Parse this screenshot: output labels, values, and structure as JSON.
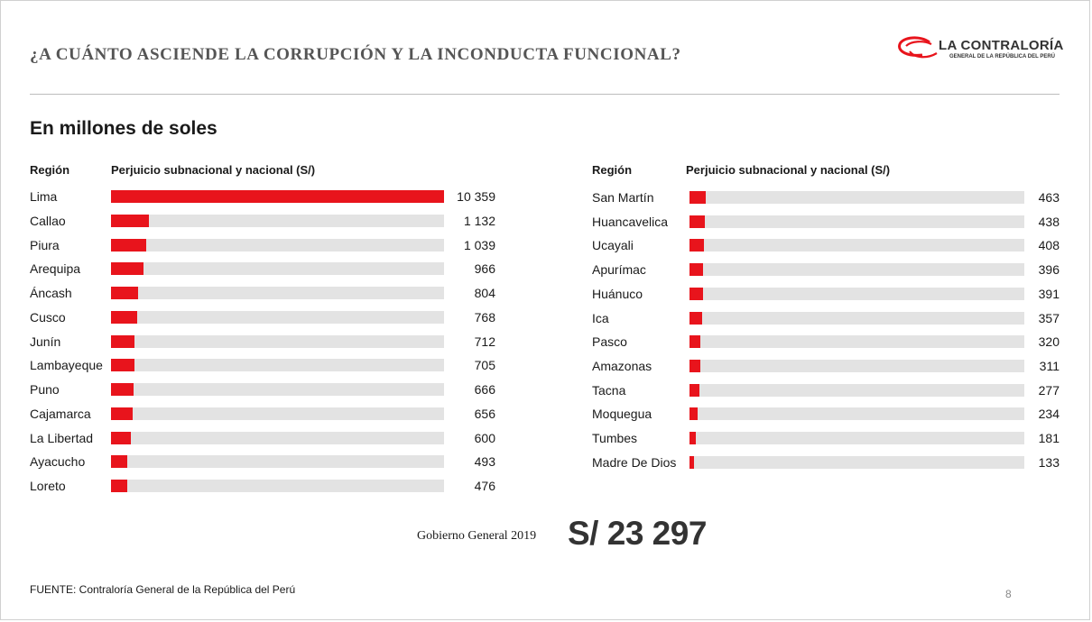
{
  "title": "¿A CUÁNTO ASCIENDE LA CORRUPCIÓN Y LA INCONDUCTA FUNCIONAL?",
  "logo": {
    "name": "LA CONTRALORÍA",
    "subtitle": "GENERAL DE LA REPÚBLICA DEL PERÚ",
    "color": "#e8141c"
  },
  "subtitle": "En millones de soles",
  "colors": {
    "bar": "#e8141c",
    "track": "#e3e3e3"
  },
  "chart_data": {
    "type": "bar",
    "orientation": "horizontal",
    "max_value": 10359,
    "panels": [
      {
        "header_region": "Región",
        "header_value": "Perjuicio subnacional y nacional (S/)",
        "categories": [
          "Lima",
          "Callao",
          "Piura",
          "Arequipa",
          "Áncash",
          "Cusco",
          "Junín",
          "Lambayeque",
          "Puno",
          "Cajamarca",
          "La Libertad",
          "Ayacucho",
          "Loreto"
        ],
        "values": [
          10359,
          1132,
          1039,
          966,
          804,
          768,
          712,
          705,
          666,
          656,
          600,
          493,
          476
        ],
        "value_labels": [
          "10 359",
          "1 132",
          "1 039",
          "966",
          "804",
          "768",
          "712",
          "705",
          "666",
          "656",
          "600",
          "493",
          "476"
        ]
      },
      {
        "header_region": "Región",
        "header_value": "Perjuicio subnacional y nacional (S/)",
        "categories": [
          "San Martín",
          "Huancavelica",
          "Ucayali",
          "Apurímac",
          "Huánuco",
          "Ica",
          "Pasco",
          "Amazonas",
          "Tacna",
          "Moquegua",
          "Tumbes",
          "Madre De Dios"
        ],
        "values": [
          463,
          438,
          408,
          396,
          391,
          357,
          320,
          311,
          277,
          234,
          181,
          133
        ],
        "value_labels": [
          "463",
          "438",
          "408",
          "396",
          "391",
          "357",
          "320",
          "311",
          "277",
          "234",
          "181",
          "133"
        ]
      }
    ]
  },
  "total": {
    "label": "Gobierno General 2019",
    "value": "S/ 23 297"
  },
  "source": "FUENTE: Contraloría General de la República del Perú",
  "page_number": "8"
}
